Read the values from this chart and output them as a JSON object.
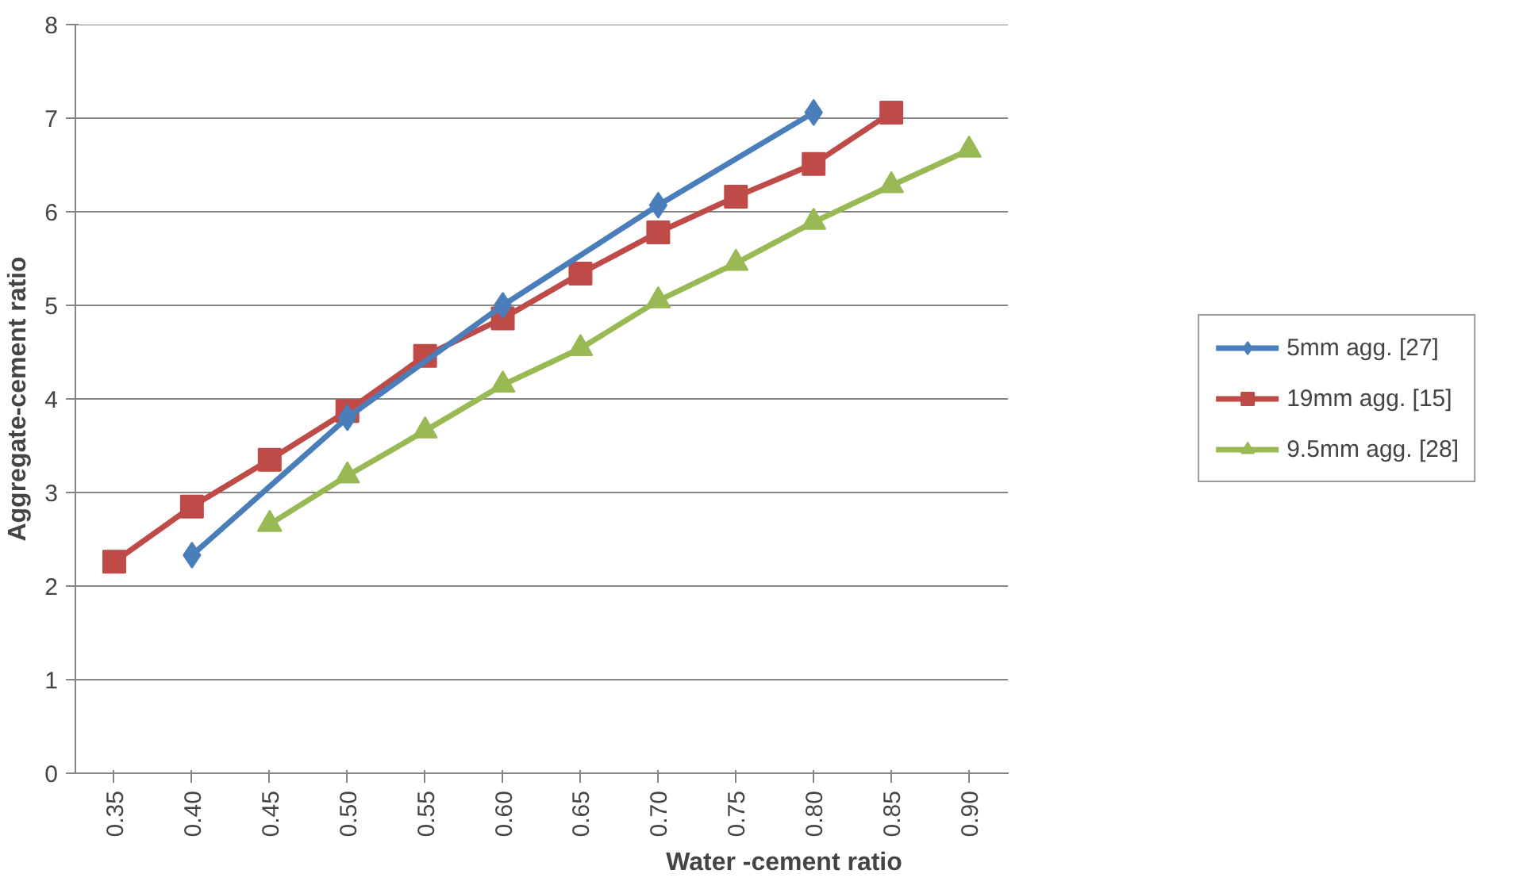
{
  "chart_data": {
    "type": "line",
    "xlabel": "Water -cement ratio",
    "ylabel": "Aggregate-cement ratio",
    "xlim": [
      0.325,
      0.925
    ],
    "xticks": [
      {
        "value": 0.35,
        "label": "0.35"
      },
      {
        "value": 0.4,
        "label": "0.40"
      },
      {
        "value": 0.45,
        "label": "0.45"
      },
      {
        "value": 0.5,
        "label": "0.50"
      },
      {
        "value": 0.55,
        "label": "0.55"
      },
      {
        "value": 0.6,
        "label": "0.60"
      },
      {
        "value": 0.65,
        "label": "0.65"
      },
      {
        "value": 0.7,
        "label": "0.70"
      },
      {
        "value": 0.75,
        "label": "0.75"
      },
      {
        "value": 0.8,
        "label": "0.80"
      },
      {
        "value": 0.85,
        "label": "0.85"
      },
      {
        "value": 0.9,
        "label": "0.90"
      }
    ],
    "ylim": [
      0,
      8
    ],
    "yticks": [
      0,
      1,
      2,
      3,
      4,
      5,
      6,
      7,
      8
    ],
    "grid": "y",
    "legend": "right",
    "line_style": "solid",
    "series": [
      {
        "name": "5mm agg. [27]",
        "color": "#4a7ebb",
        "marker": "diamond",
        "x": [
          0.4,
          0.5,
          0.6,
          0.7,
          0.8
        ],
        "values": [
          2.33,
          3.8,
          5.0,
          6.07,
          7.06
        ]
      },
      {
        "name": "19mm agg. [15]",
        "color": "#be4b48",
        "marker": "square",
        "x": [
          0.35,
          0.4,
          0.45,
          0.5,
          0.55,
          0.6,
          0.65,
          0.7,
          0.75,
          0.8,
          0.85
        ],
        "values": [
          2.26,
          2.85,
          3.35,
          3.87,
          4.46,
          4.86,
          5.34,
          5.78,
          6.16,
          6.51,
          7.06
        ]
      },
      {
        "name": "9.5mm agg. [28]",
        "color": "#98b954",
        "marker": "triangle",
        "x": [
          0.45,
          0.5,
          0.55,
          0.6,
          0.65,
          0.7,
          0.75,
          0.8,
          0.85,
          0.9
        ],
        "values": [
          2.66,
          3.18,
          3.66,
          4.15,
          4.54,
          5.05,
          5.45,
          5.89,
          6.28,
          6.66
        ]
      }
    ]
  }
}
